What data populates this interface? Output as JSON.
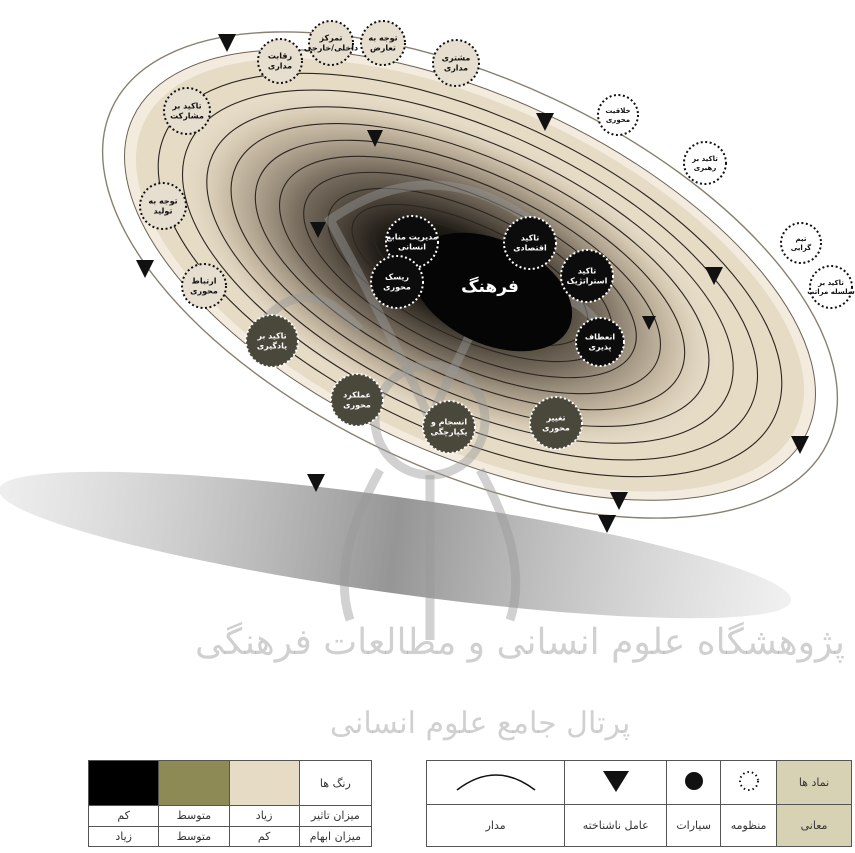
{
  "diagram": {
    "center_label": "فرهنگ",
    "planets": [
      {
        "label": "مدیریت منابع انسانی",
        "shade": "dark"
      },
      {
        "label": "ریسک محوری",
        "shade": "dark"
      },
      {
        "label": "تاکید اقتصادی",
        "shade": "dark"
      },
      {
        "label": "تاکید استراتژیک",
        "shade": "dark"
      },
      {
        "label": "انعطاف پذیری",
        "shade": "dark"
      },
      {
        "label": "تغییر محوری",
        "shade": "medium"
      },
      {
        "label": "انسجام و یکپارچگی",
        "shade": "medium"
      },
      {
        "label": "عملکرد محوری",
        "shade": "medium"
      },
      {
        "label": "تاکید بر یادگیری",
        "shade": "medium"
      },
      {
        "label": "ارتباط محوری",
        "shade": "light"
      },
      {
        "label": "توجه به تولید",
        "shade": "light"
      },
      {
        "label": "تاکید بر مشارکت",
        "shade": "light"
      },
      {
        "label": "رقابت مداری",
        "shade": "light"
      },
      {
        "label": "تمرکز داخلی/خارجی",
        "shade": "light"
      },
      {
        "label": "توجه به تعارض",
        "shade": "light"
      },
      {
        "label": "مشتری مداری",
        "shade": "light"
      },
      {
        "label": "خلاقیت محوری",
        "shade": "white"
      },
      {
        "label": "تاکید بر رهبری",
        "shade": "white"
      },
      {
        "label": "تیم گرایی",
        "shade": "white"
      },
      {
        "label": "تاکید بر سلسله مراتب",
        "shade": "white"
      }
    ],
    "watermark_line1": "پژوهشگاه علوم انسانی و مطالعات فرهنگی",
    "watermark_line2": "پرتال جامع علوم انسانی"
  },
  "legend_symbols": {
    "header": "نماد ها",
    "meanings_header": "معانی",
    "items": [
      {
        "meaning": "منظومه",
        "symbol": "dotted-circle"
      },
      {
        "meaning": "سیارات",
        "symbol": "filled-circle"
      },
      {
        "meaning": "عامل ناشناخته",
        "symbol": "triangle-down"
      },
      {
        "meaning": "مدار",
        "symbol": "arc"
      }
    ]
  },
  "legend_colors": {
    "header": "رنگ ها",
    "rows": [
      {
        "label": "میزان تاثیر",
        "cells": [
          "زیاد",
          "متوسط",
          "کم"
        ]
      },
      {
        "label": "میزان ابهام",
        "cells": [
          "کم",
          "متوسط",
          "زیاد"
        ]
      }
    ],
    "swatches": [
      "#e6dcc6",
      "#8e8a55",
      "#000000"
    ]
  }
}
